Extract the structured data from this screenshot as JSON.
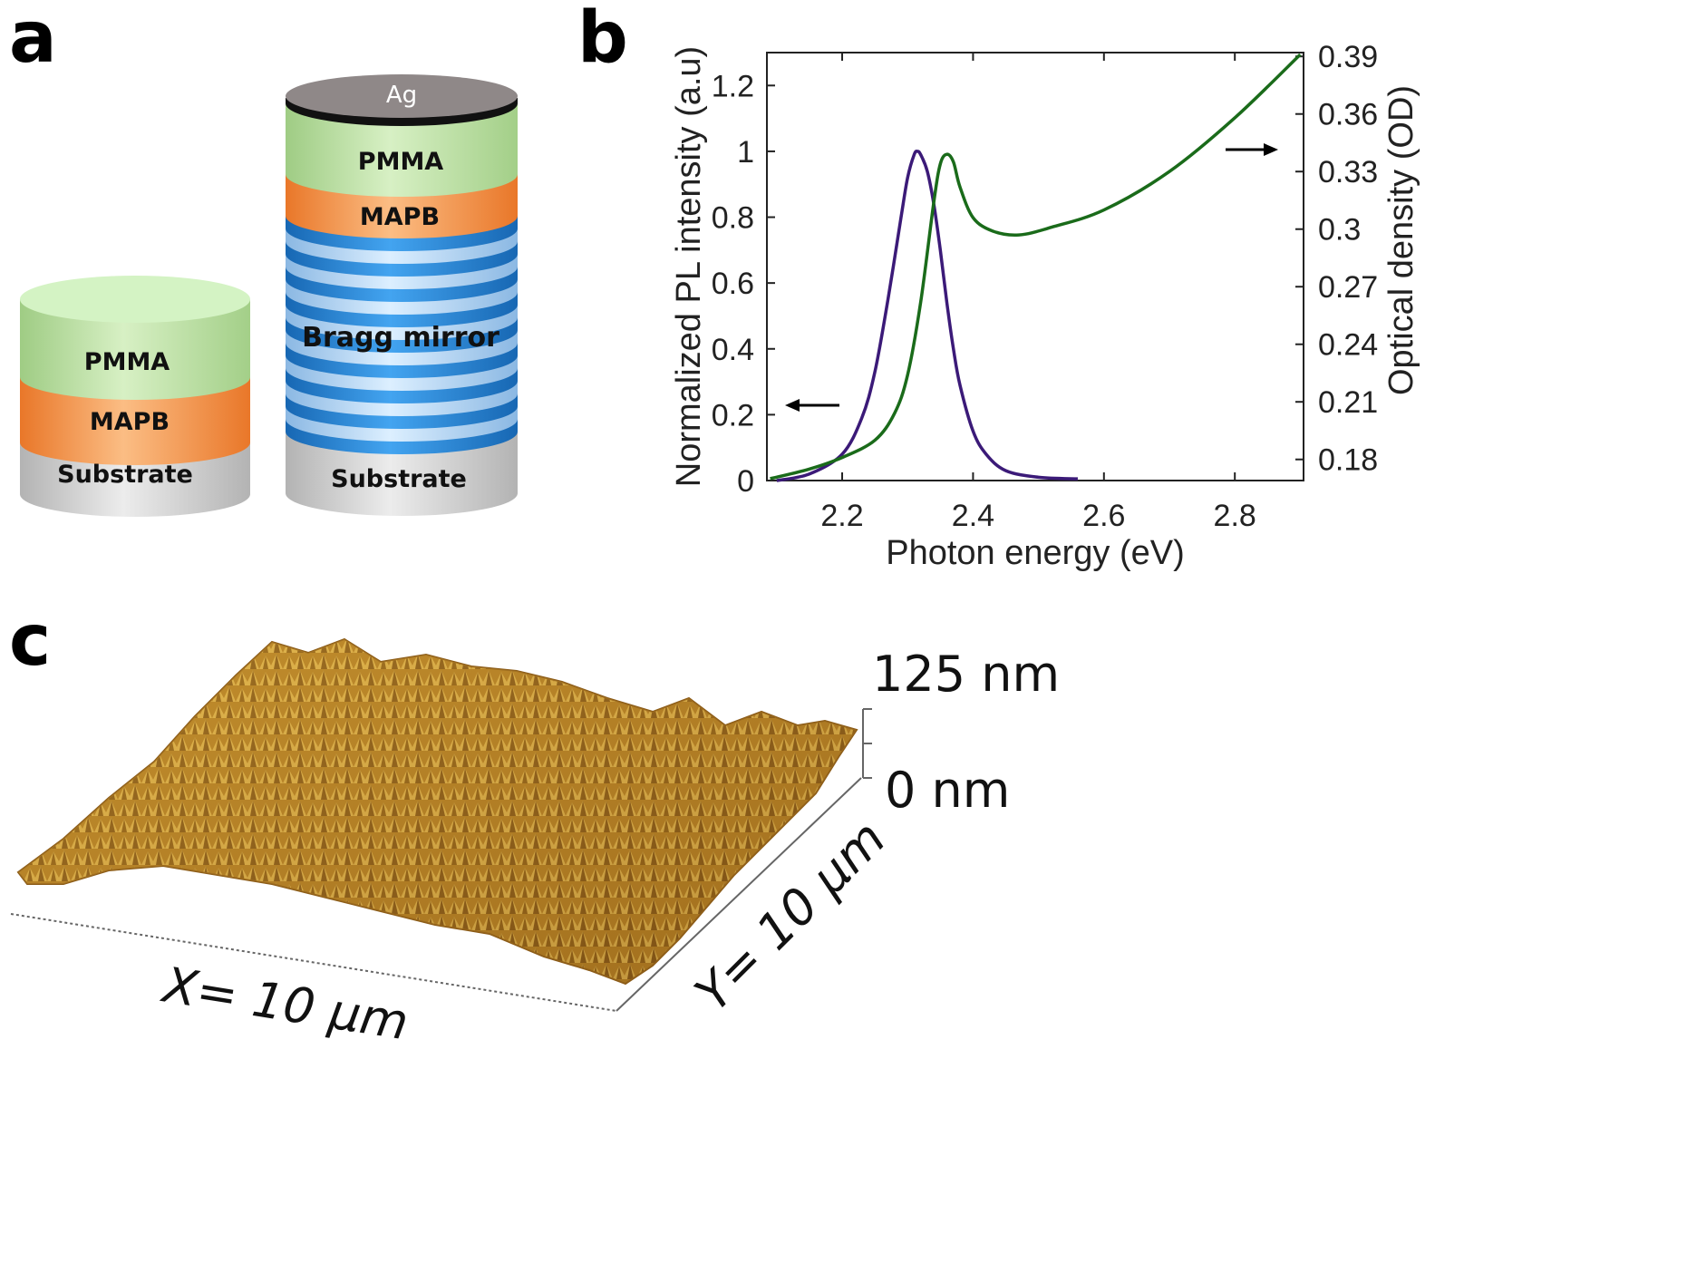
{
  "panels": {
    "a": {
      "label": "a",
      "small_stack": {
        "layers": [
          "PMMA",
          "MAPB",
          "Substrate"
        ]
      },
      "tall_stack": {
        "layers": [
          "Ag",
          "PMMA",
          "MAPB",
          "Bragg mirror",
          "Substrate"
        ]
      }
    },
    "b": {
      "label": "b"
    },
    "c": {
      "label": "c",
      "scale_top": "125 nm",
      "scale_bottom": "0 nm",
      "x_label": "X= 10 µm",
      "y_label": "Y= 10 µm"
    }
  },
  "colors": {
    "pl_curve": "#3b1a78",
    "od_curve": "#1a6b1a",
    "pmma": "#a9d18e",
    "mapb": "#ed7d31",
    "substrate": "#bfbfbf",
    "bragg_dark": "#1f6fbf",
    "bragg_light": "#9dc3e6",
    "ag": "#8c8686",
    "afm_base": "#b8862a"
  },
  "chart_data": {
    "type": "line",
    "title": "",
    "xlabel": "Photon energy (eV)",
    "ylabel": "Normalized PL intensity (a.u)",
    "y2label": "Optical density (OD)",
    "xlim": [
      2.085,
      2.905
    ],
    "ylim": [
      0,
      1.3
    ],
    "y2lim": [
      0.169,
      0.392
    ],
    "xticks": [
      2.2,
      2.4,
      2.6,
      2.8
    ],
    "xtick_labels": [
      "2.2",
      "2.4",
      "2.6",
      "2.8"
    ],
    "yticks": [
      0,
      0.2,
      0.4,
      0.6,
      0.8,
      1,
      1.2
    ],
    "ytick_labels": [
      "0",
      "0.2",
      "0.4",
      "0.6",
      "0.8",
      "1",
      "1.2"
    ],
    "y2ticks": [
      0.18,
      0.21,
      0.24,
      0.27,
      0.3,
      0.33,
      0.36,
      0.39
    ],
    "y2tick_labels": [
      "0.18",
      "0.21",
      "0.24",
      "0.27",
      "0.3",
      "0.33",
      "0.36",
      "0.39"
    ],
    "series": [
      {
        "name": "PL",
        "axis": "left",
        "x": [
          2.1,
          2.15,
          2.2,
          2.23,
          2.25,
          2.27,
          2.29,
          2.3,
          2.31,
          2.315,
          2.32,
          2.33,
          2.34,
          2.35,
          2.36,
          2.37,
          2.38,
          2.4,
          2.42,
          2.45,
          2.5,
          2.56
        ],
        "y": [
          0.0,
          0.02,
          0.08,
          0.19,
          0.33,
          0.55,
          0.8,
          0.92,
          0.99,
          1.0,
          0.99,
          0.94,
          0.84,
          0.7,
          0.54,
          0.4,
          0.29,
          0.15,
          0.08,
          0.03,
          0.01,
          0.005
        ]
      },
      {
        "name": "OD",
        "axis": "right",
        "x": [
          2.09,
          2.15,
          2.2,
          2.25,
          2.28,
          2.3,
          2.32,
          2.34,
          2.35,
          2.36,
          2.37,
          2.38,
          2.4,
          2.43,
          2.47,
          2.52,
          2.6,
          2.7,
          2.8,
          2.9
        ],
        "y": [
          0.17,
          0.175,
          0.181,
          0.19,
          0.204,
          0.224,
          0.262,
          0.314,
          0.334,
          0.339,
          0.335,
          0.322,
          0.306,
          0.299,
          0.297,
          0.301,
          0.31,
          0.33,
          0.358,
          0.391
        ]
      }
    ]
  }
}
